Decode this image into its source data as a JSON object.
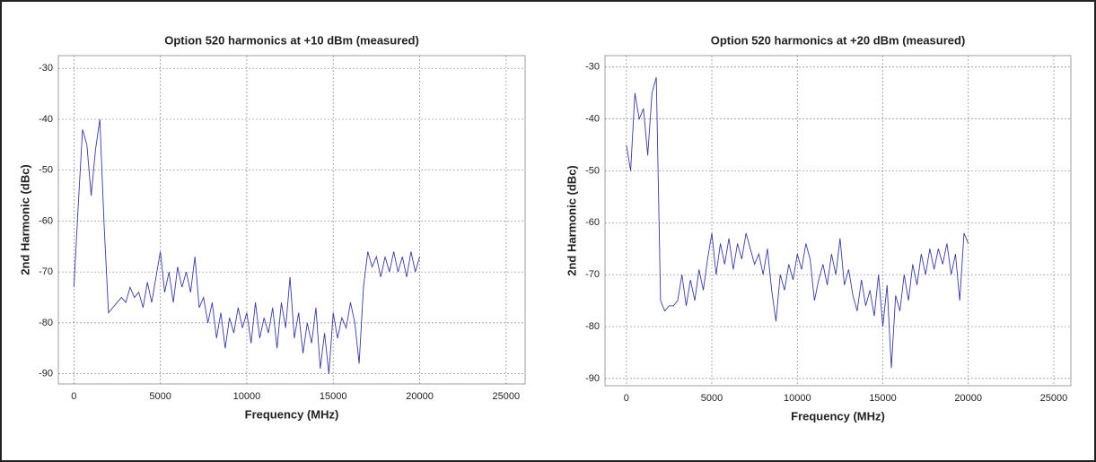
{
  "chart_data": [
    {
      "type": "line",
      "title": "Option 520 harmonics at +10 dBm (measured)",
      "x_label": "Frequency (MHz)",
      "y_label": "2nd Harmonic (dBc)",
      "xlim": [
        -900,
        26100
      ],
      "ylim": [
        -92,
        -27.5
      ],
      "xticks": [
        0,
        5000,
        10000,
        15000,
        20000,
        25000
      ],
      "yticks": [
        -30,
        -40,
        -50,
        -60,
        -70,
        -80,
        -90
      ],
      "grid": true,
      "x": [
        0,
        250,
        500,
        750,
        1000,
        1250,
        1500,
        1750,
        2000,
        2250,
        2500,
        2750,
        3000,
        3250,
        3500,
        3750,
        4000,
        4250,
        4500,
        4750,
        5000,
        5250,
        5500,
        5750,
        6000,
        6250,
        6500,
        6750,
        7000,
        7250,
        7500,
        7750,
        8000,
        8250,
        8500,
        8750,
        9000,
        9250,
        9500,
        9750,
        10000,
        10250,
        10500,
        10750,
        11000,
        11250,
        11500,
        11750,
        12000,
        12250,
        12500,
        12750,
        13000,
        13250,
        13500,
        13750,
        14000,
        14250,
        14500,
        14750,
        15000,
        15250,
        15500,
        15750,
        16000,
        16250,
        16500,
        16750,
        17000,
        17250,
        17500,
        17750,
        18000,
        18250,
        18500,
        18750,
        19000,
        19250,
        19500,
        19750,
        20000
      ],
      "series": [
        {
          "color": "#3a3aa0",
          "values": [
            -73,
            -57,
            -42,
            -45,
            -55,
            -46,
            -40,
            -61,
            -78,
            -77,
            -76,
            -75,
            -76,
            -73,
            -75,
            -74,
            -77,
            -72,
            -76,
            -71,
            -66,
            -74,
            -70,
            -76,
            -69,
            -73,
            -70,
            -74,
            -67,
            -77,
            -75,
            -80,
            -76,
            -83,
            -78,
            -85,
            -79,
            -82,
            -77,
            -81,
            -78,
            -84,
            -76,
            -83,
            -79,
            -82,
            -77,
            -85,
            -76,
            -81,
            -71,
            -83,
            -78,
            -86,
            -80,
            -84,
            -77,
            -89,
            -82,
            -90,
            -78,
            -83,
            -79,
            -81,
            -76,
            -80,
            -88,
            -73,
            -66,
            -69,
            -67,
            -71,
            -67,
            -70,
            -66,
            -70,
            -67,
            -71,
            -66,
            -70,
            -67
          ]
        }
      ]
    },
    {
      "type": "line",
      "title": "Option 520 harmonics at +20 dBm (measured)",
      "x_label": "Frequency (MHz)",
      "y_label": "2nd Harmonic (dBc)",
      "xlim": [
        -1250,
        26000
      ],
      "ylim": [
        -91.4,
        -27.8
      ],
      "xticks": [
        0,
        5000,
        10000,
        15000,
        20000,
        25000
      ],
      "yticks": [
        -30,
        -40,
        -50,
        -60,
        -70,
        -80,
        -90
      ],
      "grid": true,
      "x": [
        0,
        250,
        500,
        750,
        1000,
        1250,
        1500,
        1750,
        2000,
        2250,
        2500,
        2750,
        3000,
        3250,
        3500,
        3750,
        4000,
        4250,
        4500,
        4750,
        5000,
        5250,
        5500,
        5750,
        6000,
        6250,
        6500,
        6750,
        7000,
        7250,
        7500,
        7750,
        8000,
        8250,
        8500,
        8750,
        9000,
        9250,
        9500,
        9750,
        10000,
        10250,
        10500,
        10750,
        11000,
        11250,
        11500,
        11750,
        12000,
        12250,
        12500,
        12750,
        13000,
        13250,
        13500,
        13750,
        14000,
        14250,
        14500,
        14750,
        15000,
        15250,
        15500,
        15750,
        16000,
        16250,
        16500,
        16750,
        17000,
        17250,
        17500,
        17750,
        18000,
        18250,
        18500,
        18750,
        19000,
        19250,
        19500,
        19750,
        20000
      ],
      "series": [
        {
          "color": "#3a3aa0",
          "values": [
            -45,
            -50,
            -35,
            -40,
            -38,
            -47,
            -35,
            -32,
            -75,
            -77,
            -76,
            -76,
            -75,
            -70,
            -76,
            -71,
            -75,
            -69,
            -73,
            -67,
            -62,
            -70,
            -64,
            -68,
            -63,
            -69,
            -64,
            -67,
            -62,
            -65,
            -68,
            -66,
            -70,
            -65,
            -73,
            -79,
            -70,
            -73,
            -68,
            -71,
            -66,
            -69,
            -64,
            -67,
            -75,
            -71,
            -68,
            -72,
            -66,
            -70,
            -63,
            -72,
            -69,
            -74,
            -77,
            -71,
            -76,
            -73,
            -78,
            -70,
            -80,
            -72,
            -88,
            -74,
            -77,
            -70,
            -75,
            -68,
            -72,
            -66,
            -70,
            -65,
            -69,
            -65,
            -68,
            -64,
            -70,
            -66,
            -75,
            -62,
            -64
          ]
        }
      ]
    }
  ]
}
